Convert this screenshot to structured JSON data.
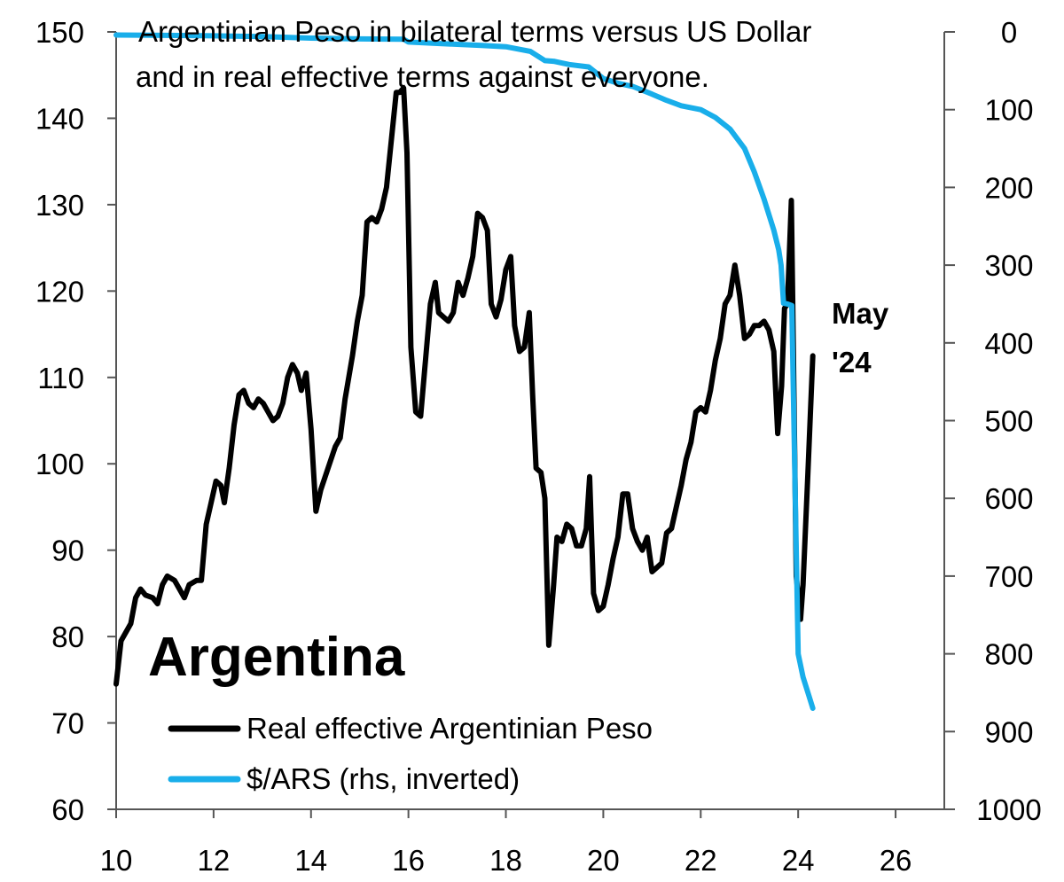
{
  "chart_data": {
    "type": "line",
    "title": "Argentinian Peso in bilateral terms versus US Dollar",
    "subtitle": "and in real effective terms against everyone.",
    "label": "Argentina",
    "annotation": [
      "May",
      "'24"
    ],
    "x_axis": {
      "range": [
        10,
        27
      ],
      "ticks": [
        10,
        12,
        14,
        16,
        18,
        20,
        22,
        24,
        26
      ],
      "tick_labels": [
        "10",
        "12",
        "14",
        "16",
        "18",
        "20",
        "22",
        "24",
        "26"
      ]
    },
    "y_left": {
      "range": [
        60,
        150
      ],
      "ticks": [
        60,
        70,
        80,
        90,
        100,
        110,
        120,
        130,
        140,
        150
      ],
      "tick_labels": [
        "60",
        "70",
        "80",
        "90",
        "100",
        "110",
        "120",
        "130",
        "140",
        "150"
      ]
    },
    "y_right": {
      "range": [
        0,
        1000
      ],
      "inverted": true,
      "ticks": [
        0,
        100,
        200,
        300,
        400,
        500,
        600,
        700,
        800,
        900,
        1000
      ],
      "tick_labels": [
        "0",
        "100",
        "200",
        "300",
        "400",
        "500",
        "600",
        "700",
        "800",
        "900",
        "1000"
      ]
    },
    "grid": false,
    "legend_position": "bottom-left",
    "series": [
      {
        "name": "Real effective Argentinian Peso",
        "axis": "left",
        "color": "#000000",
        "points": [
          [
            10.0,
            74.5
          ],
          [
            10.1,
            79.5
          ],
          [
            10.3,
            81.5
          ],
          [
            10.4,
            84.5
          ],
          [
            10.5,
            85.5
          ],
          [
            10.6,
            84.8
          ],
          [
            10.75,
            84.5
          ],
          [
            10.85,
            83.8
          ],
          [
            10.95,
            86.0
          ],
          [
            11.05,
            87.0
          ],
          [
            11.2,
            86.5
          ],
          [
            11.3,
            85.5
          ],
          [
            11.4,
            84.5
          ],
          [
            11.5,
            86.0
          ],
          [
            11.65,
            86.5
          ],
          [
            11.75,
            86.5
          ],
          [
            11.85,
            93.0
          ],
          [
            11.95,
            95.5
          ],
          [
            12.05,
            98.0
          ],
          [
            12.15,
            97.5
          ],
          [
            12.22,
            95.5
          ],
          [
            12.32,
            99.5
          ],
          [
            12.42,
            104.5
          ],
          [
            12.52,
            108.0
          ],
          [
            12.62,
            108.5
          ],
          [
            12.72,
            107.0
          ],
          [
            12.82,
            106.5
          ],
          [
            12.92,
            107.5
          ],
          [
            13.02,
            107.0
          ],
          [
            13.12,
            106.0
          ],
          [
            13.22,
            105.0
          ],
          [
            13.32,
            105.5
          ],
          [
            13.42,
            107.0
          ],
          [
            13.52,
            110.0
          ],
          [
            13.62,
            111.5
          ],
          [
            13.72,
            110.5
          ],
          [
            13.8,
            108.5
          ],
          [
            13.9,
            110.5
          ],
          [
            14.0,
            104.0
          ],
          [
            14.1,
            94.5
          ],
          [
            14.2,
            97.0
          ],
          [
            14.35,
            99.5
          ],
          [
            14.5,
            102.0
          ],
          [
            14.6,
            103.0
          ],
          [
            14.7,
            107.5
          ],
          [
            14.85,
            112.5
          ],
          [
            14.95,
            116.5
          ],
          [
            15.05,
            119.5
          ],
          [
            15.15,
            128.0
          ],
          [
            15.25,
            128.5
          ],
          [
            15.35,
            128.0
          ],
          [
            15.45,
            129.5
          ],
          [
            15.55,
            132.0
          ],
          [
            15.65,
            137.5
          ],
          [
            15.75,
            143.0
          ],
          [
            15.82,
            143.0
          ],
          [
            15.9,
            143.5
          ],
          [
            15.97,
            136.0
          ],
          [
            16.05,
            113.5
          ],
          [
            16.15,
            106.0
          ],
          [
            16.25,
            105.5
          ],
          [
            16.35,
            112.0
          ],
          [
            16.45,
            118.5
          ],
          [
            16.55,
            121.0
          ],
          [
            16.62,
            117.5
          ],
          [
            16.72,
            117.0
          ],
          [
            16.82,
            116.5
          ],
          [
            16.92,
            117.5
          ],
          [
            17.02,
            121.0
          ],
          [
            17.12,
            119.5
          ],
          [
            17.22,
            121.5
          ],
          [
            17.32,
            124.0
          ],
          [
            17.42,
            129.0
          ],
          [
            17.52,
            128.5
          ],
          [
            17.62,
            127.0
          ],
          [
            17.7,
            118.5
          ],
          [
            17.8,
            117.0
          ],
          [
            17.9,
            119.0
          ],
          [
            18.0,
            122.5
          ],
          [
            18.1,
            124.0
          ],
          [
            18.18,
            116.0
          ],
          [
            18.28,
            113.0
          ],
          [
            18.38,
            113.5
          ],
          [
            18.48,
            117.5
          ],
          [
            18.55,
            108.0
          ],
          [
            18.62,
            99.5
          ],
          [
            18.72,
            99.0
          ],
          [
            18.8,
            96.0
          ],
          [
            18.88,
            79.0
          ],
          [
            18.98,
            86.0
          ],
          [
            19.05,
            91.5
          ],
          [
            19.15,
            91.0
          ],
          [
            19.25,
            93.0
          ],
          [
            19.35,
            92.5
          ],
          [
            19.45,
            90.5
          ],
          [
            19.55,
            90.5
          ],
          [
            19.65,
            92.5
          ],
          [
            19.72,
            98.5
          ],
          [
            19.8,
            85.0
          ],
          [
            19.9,
            83.0
          ],
          [
            20.0,
            83.5
          ],
          [
            20.1,
            86.0
          ],
          [
            20.2,
            89.0
          ],
          [
            20.3,
            91.5
          ],
          [
            20.4,
            96.5
          ],
          [
            20.5,
            96.5
          ],
          [
            20.6,
            92.5
          ],
          [
            20.7,
            91.0
          ],
          [
            20.8,
            90.0
          ],
          [
            20.9,
            91.5
          ],
          [
            21.0,
            87.5
          ],
          [
            21.1,
            88.0
          ],
          [
            21.2,
            88.5
          ],
          [
            21.3,
            92.0
          ],
          [
            21.4,
            92.5
          ],
          [
            21.5,
            95.0
          ],
          [
            21.6,
            97.5
          ],
          [
            21.7,
            100.5
          ],
          [
            21.8,
            102.5
          ],
          [
            21.9,
            106.0
          ],
          [
            22.0,
            106.5
          ],
          [
            22.1,
            106.0
          ],
          [
            22.2,
            108.5
          ],
          [
            22.3,
            112.0
          ],
          [
            22.4,
            114.5
          ],
          [
            22.5,
            118.5
          ],
          [
            22.6,
            119.5
          ],
          [
            22.7,
            123.0
          ],
          [
            22.8,
            119.5
          ],
          [
            22.9,
            114.5
          ],
          [
            23.0,
            115.0
          ],
          [
            23.1,
            116.0
          ],
          [
            23.2,
            116.0
          ],
          [
            23.3,
            116.5
          ],
          [
            23.4,
            115.5
          ],
          [
            23.5,
            113.0
          ],
          [
            23.58,
            103.5
          ],
          [
            23.66,
            109.0
          ],
          [
            23.72,
            118.0
          ],
          [
            23.78,
            118.5
          ],
          [
            23.86,
            130.5
          ],
          [
            23.9,
            114.0
          ],
          [
            23.96,
            87.0
          ],
          [
            24.05,
            82.0
          ],
          [
            24.1,
            86.0
          ],
          [
            24.2,
            99.0
          ],
          [
            24.3,
            112.5
          ]
        ]
      },
      {
        "name": "$/ARS (rhs, inverted)",
        "axis": "right",
        "color": "#19aeea",
        "points": [
          [
            10.0,
            4
          ],
          [
            11.0,
            4.5
          ],
          [
            12.0,
            5
          ],
          [
            13.0,
            6
          ],
          [
            14.0,
            8
          ],
          [
            15.0,
            9
          ],
          [
            15.9,
            9.5
          ],
          [
            16.0,
            13
          ],
          [
            16.5,
            14.5
          ],
          [
            17.0,
            16
          ],
          [
            17.5,
            17.5
          ],
          [
            18.0,
            19
          ],
          [
            18.5,
            25
          ],
          [
            18.8,
            37
          ],
          [
            19.0,
            38
          ],
          [
            19.3,
            42
          ],
          [
            19.7,
            45
          ],
          [
            20.0,
            60
          ],
          [
            20.3,
            66
          ],
          [
            20.6,
            70
          ],
          [
            21.0,
            80
          ],
          [
            21.3,
            88
          ],
          [
            21.6,
            95
          ],
          [
            22.0,
            100
          ],
          [
            22.3,
            110
          ],
          [
            22.6,
            125
          ],
          [
            22.9,
            150
          ],
          [
            23.1,
            180
          ],
          [
            23.3,
            215
          ],
          [
            23.5,
            255
          ],
          [
            23.6,
            280
          ],
          [
            23.65,
            300
          ],
          [
            23.7,
            349
          ],
          [
            23.78,
            350
          ],
          [
            23.87,
            352
          ],
          [
            23.93,
            560
          ],
          [
            24.0,
            800
          ],
          [
            24.1,
            830
          ],
          [
            24.2,
            850
          ],
          [
            24.3,
            870
          ]
        ]
      }
    ]
  }
}
